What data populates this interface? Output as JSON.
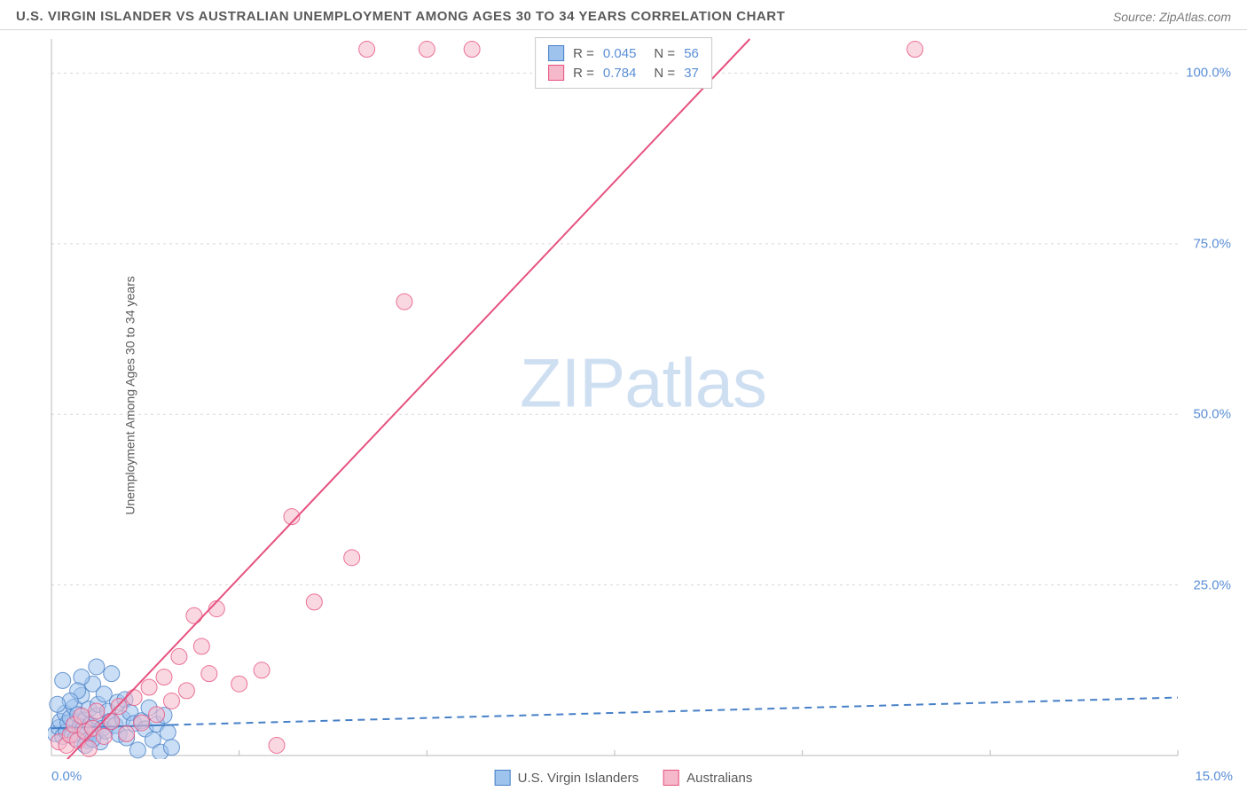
{
  "title": "U.S. VIRGIN ISLANDER VS AUSTRALIAN UNEMPLOYMENT AMONG AGES 30 TO 34 YEARS CORRELATION CHART",
  "source": "Source: ZipAtlas.com",
  "watermark_a": "ZIP",
  "watermark_b": "atlas",
  "y_axis_label": "Unemployment Among Ages 30 to 34 years",
  "chart": {
    "type": "scatter",
    "background_color": "#ffffff",
    "grid_color": "#d8d8d8",
    "axis_color": "#b8b8b8",
    "label_color": "#5b8fd6",
    "text_color": "#5a5a5a",
    "xlim": [
      0,
      15
    ],
    "ylim": [
      0,
      105
    ],
    "x_ticks": [
      0,
      2.5,
      5,
      7.5,
      10,
      12.5,
      15
    ],
    "x_tick_labels": [
      "0.0%",
      "",
      "",
      "",
      "",
      "",
      "15.0%"
    ],
    "y_ticks": [
      25,
      50,
      75,
      100
    ],
    "y_tick_labels": [
      "25.0%",
      "50.0%",
      "75.0%",
      "100.0%"
    ],
    "marker_radius": 9,
    "marker_opacity": 0.55,
    "series": [
      {
        "name": "U.S. Virgin Islanders",
        "key": "usvi",
        "fill": "#9ec3ec",
        "stroke": "#4780c7",
        "line_style": "solid_then_dashed",
        "line_width": 2,
        "R": "0.045",
        "N": "56",
        "trend": {
          "x1": 0,
          "y1": 4.0,
          "x2": 15,
          "y2": 8.5,
          "solid_until_x": 1.6
        },
        "points": [
          [
            0.05,
            3.2
          ],
          [
            0.1,
            4.1
          ],
          [
            0.12,
            5.0
          ],
          [
            0.15,
            2.8
          ],
          [
            0.18,
            6.2
          ],
          [
            0.2,
            3.5
          ],
          [
            0.22,
            4.8
          ],
          [
            0.25,
            5.5
          ],
          [
            0.28,
            3.0
          ],
          [
            0.3,
            7.1
          ],
          [
            0.32,
            2.5
          ],
          [
            0.35,
            6.0
          ],
          [
            0.38,
            4.2
          ],
          [
            0.4,
            8.8
          ],
          [
            0.42,
            3.8
          ],
          [
            0.45,
            5.2
          ],
          [
            0.48,
            2.2
          ],
          [
            0.5,
            6.8
          ],
          [
            0.52,
            4.5
          ],
          [
            0.55,
            10.5
          ],
          [
            0.58,
            3.3
          ],
          [
            0.6,
            5.8
          ],
          [
            0.62,
            7.5
          ],
          [
            0.65,
            2.0
          ],
          [
            0.68,
            4.0
          ],
          [
            0.7,
            9.0
          ],
          [
            0.72,
            3.6
          ],
          [
            0.75,
            6.5
          ],
          [
            0.78,
            5.0
          ],
          [
            0.8,
            12.0
          ],
          [
            0.85,
            4.4
          ],
          [
            0.88,
            7.8
          ],
          [
            0.9,
            3.1
          ],
          [
            0.95,
            5.4
          ],
          [
            0.98,
            8.2
          ],
          [
            1.0,
            2.6
          ],
          [
            1.05,
            6.3
          ],
          [
            1.1,
            4.7
          ],
          [
            1.15,
            0.8
          ],
          [
            1.2,
            5.1
          ],
          [
            1.25,
            3.9
          ],
          [
            1.3,
            7.0
          ],
          [
            1.35,
            2.3
          ],
          [
            1.4,
            4.6
          ],
          [
            1.45,
            0.5
          ],
          [
            1.5,
            5.9
          ],
          [
            1.55,
            3.4
          ],
          [
            1.6,
            1.2
          ],
          [
            0.4,
            11.5
          ],
          [
            0.6,
            13.0
          ],
          [
            0.35,
            9.5
          ],
          [
            0.25,
            8.0
          ],
          [
            0.15,
            11.0
          ],
          [
            0.08,
            7.5
          ],
          [
            0.45,
            1.5
          ],
          [
            0.55,
            2.4
          ]
        ]
      },
      {
        "name": "Australians",
        "key": "aus",
        "fill": "#f6b8cb",
        "stroke": "#e6527f",
        "line_style": "solid",
        "line_width": 2,
        "R": "0.784",
        "N": "37",
        "trend": {
          "x1": 0,
          "y1": -3,
          "x2": 9.3,
          "y2": 105
        },
        "points": [
          [
            0.1,
            2.0
          ],
          [
            0.2,
            1.5
          ],
          [
            0.25,
            3.0
          ],
          [
            0.3,
            4.5
          ],
          [
            0.35,
            2.2
          ],
          [
            0.4,
            5.8
          ],
          [
            0.45,
            3.5
          ],
          [
            0.5,
            1.0
          ],
          [
            0.55,
            4.0
          ],
          [
            0.6,
            6.5
          ],
          [
            0.7,
            2.8
          ],
          [
            0.8,
            5.0
          ],
          [
            0.9,
            7.2
          ],
          [
            1.0,
            3.2
          ],
          [
            1.1,
            8.5
          ],
          [
            1.2,
            4.8
          ],
          [
            1.3,
            10.0
          ],
          [
            1.4,
            6.0
          ],
          [
            1.5,
            11.5
          ],
          [
            1.6,
            8.0
          ],
          [
            1.7,
            14.5
          ],
          [
            1.8,
            9.5
          ],
          [
            1.9,
            20.5
          ],
          [
            2.0,
            16.0
          ],
          [
            2.1,
            12.0
          ],
          [
            2.2,
            21.5
          ],
          [
            2.5,
            10.5
          ],
          [
            2.8,
            12.5
          ],
          [
            3.0,
            1.5
          ],
          [
            3.2,
            35.0
          ],
          [
            3.5,
            22.5
          ],
          [
            4.0,
            29.0
          ],
          [
            4.2,
            103.5
          ],
          [
            4.7,
            66.5
          ],
          [
            5.0,
            103.5
          ],
          [
            5.6,
            103.5
          ],
          [
            11.5,
            103.5
          ]
        ]
      }
    ]
  },
  "bottom_legend": [
    {
      "label": "U.S. Virgin Islanders",
      "fill": "#9ec3ec",
      "stroke": "#4780c7"
    },
    {
      "label": "Australians",
      "fill": "#f6b8cb",
      "stroke": "#e6527f"
    }
  ]
}
